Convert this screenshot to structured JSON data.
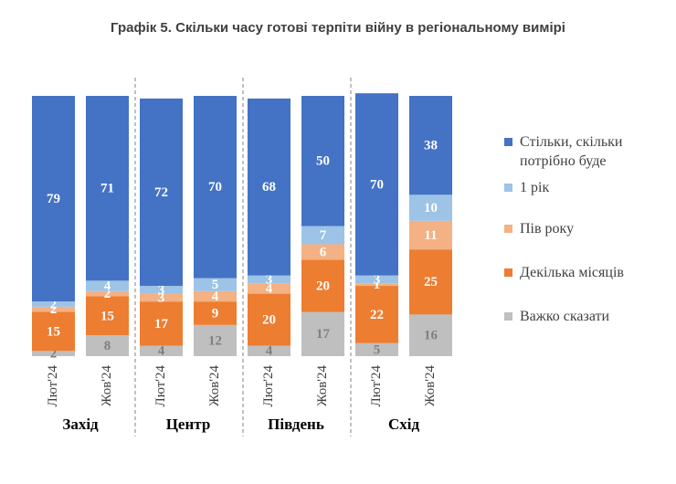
{
  "chart_data": {
    "type": "stacked_bar",
    "title": "Графік 5. Скільки часу готові терпіти війну в регіональному вимірі",
    "groups": [
      "Захід",
      "Центр",
      "Південь",
      "Схід"
    ],
    "categories": [
      "Лют'24",
      "Жов'24",
      "Лют'24",
      "Жов'24",
      "Лют'24",
      "Жов'24",
      "Лют'24",
      "Жов'24"
    ],
    "series": [
      {
        "name": "Важко сказати",
        "color": "#bfbfbf",
        "values": [
          2,
          8,
          4,
          12,
          4,
          17,
          5,
          16
        ]
      },
      {
        "name": "Декілька місяців",
        "color": "#ed7d31",
        "values": [
          15,
          15,
          17,
          9,
          20,
          20,
          22,
          25
        ]
      },
      {
        "name": "Пів року",
        "color": "#f4b183",
        "values": [
          2,
          2,
          3,
          4,
          4,
          6,
          1,
          11
        ]
      },
      {
        "name": "1 рік",
        "color": "#9dc3e6",
        "values": [
          2,
          4,
          3,
          5,
          3,
          7,
          3,
          10
        ]
      },
      {
        "name": "Стільки, скільки потрібно буде",
        "color": "#4472c4",
        "values": [
          79,
          71,
          72,
          70,
          68,
          50,
          70,
          38
        ]
      }
    ],
    "ylim": [
      0,
      100
    ]
  }
}
